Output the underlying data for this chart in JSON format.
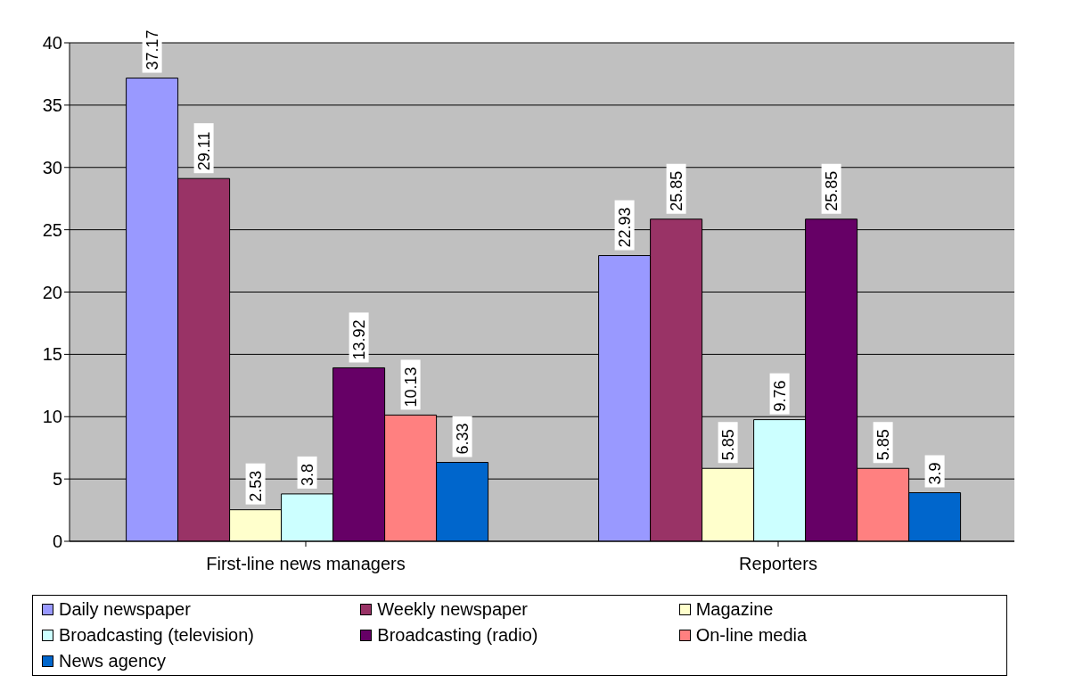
{
  "chart_data": {
    "type": "bar",
    "categories": [
      "First-line news managers",
      "Reporters"
    ],
    "series": [
      {
        "name": "Daily newspaper",
        "color": "#9999ff",
        "values": [
          37.17,
          22.93
        ]
      },
      {
        "name": "Weekly newspaper",
        "color": "#993366",
        "values": [
          29.11,
          25.85
        ]
      },
      {
        "name": "Magazine",
        "color": "#ffffcc",
        "values": [
          2.53,
          5.85
        ]
      },
      {
        "name": "Broadcasting (television)",
        "color": "#ccffff",
        "values": [
          3.8,
          9.76
        ]
      },
      {
        "name": "Broadcasting (radio)",
        "color": "#660066",
        "values": [
          13.92,
          25.85
        ]
      },
      {
        "name": "On-line media",
        "color": "#ff8080",
        "values": [
          10.13,
          5.85
        ]
      },
      {
        "name": "News agency",
        "color": "#0066cc",
        "values": [
          6.33,
          3.9
        ]
      }
    ],
    "ylim": [
      0,
      40
    ],
    "yticks": [
      0,
      5,
      10,
      15,
      20,
      25,
      30,
      35,
      40
    ],
    "grid": "y",
    "legend": "bottom",
    "data_labels": true
  }
}
